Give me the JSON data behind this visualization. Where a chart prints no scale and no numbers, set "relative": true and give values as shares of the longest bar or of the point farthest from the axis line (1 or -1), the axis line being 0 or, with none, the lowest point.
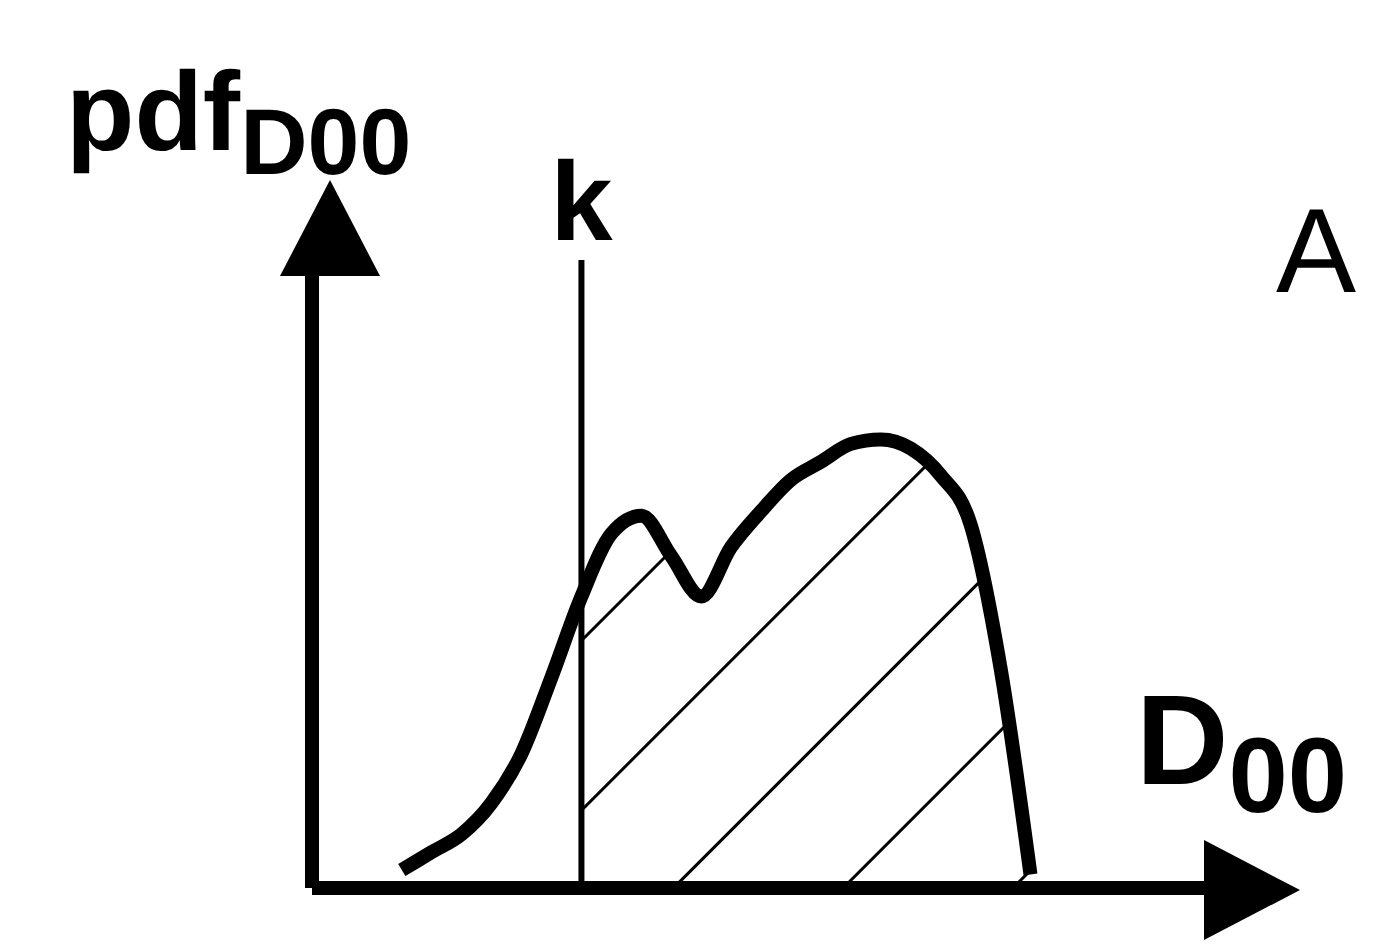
{
  "chart_data": {
    "type": "line",
    "relative": true,
    "ylabel": "pdf$_{D00}$",
    "xlabel": "D$_{00}$",
    "annotations": [
      "A",
      "k"
    ],
    "categories": [
      null,
      null,
      null,
      null,
      null,
      null,
      null,
      null,
      null,
      null,
      null,
      null,
      null,
      null,
      null,
      null,
      null,
      null,
      null,
      null,
      null,
      null
    ],
    "series": [
      {
        "color": "#000000",
        "values": [
          0.04,
          0.08,
          0.12,
          0.19,
          0.3,
          0.47,
          0.65,
          0.79,
          0.83,
          0.74,
          0.65,
          0.76,
          0.84,
          0.91,
          0.95,
          0.99,
          1,
          0.98,
          0.92,
          0.81,
          0.49,
          0.03
        ]
      },
      {
        "type": "area",
        "color": "#000000",
        "values": [
          null,
          null,
          null,
          null,
          null,
          null,
          0.65,
          0.79,
          0.83,
          0.74,
          0.65,
          0.76,
          0.84,
          0.91,
          0.95,
          0.99,
          1,
          0.98,
          0.92,
          0.81,
          0.49,
          0.03
        ]
      }
    ],
    "legend": false,
    "grid": false,
    "marker": "none",
    "line_style": "solid"
  }
}
